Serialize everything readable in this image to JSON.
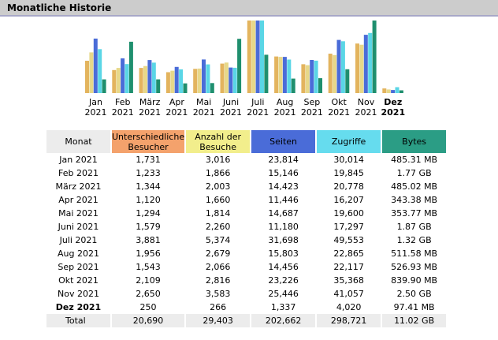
{
  "page": {
    "title": "Monatliche Historie"
  },
  "colors": {
    "unique": "#e3b45e",
    "visits": "#e7d889",
    "pages": "#4a6cd8",
    "hits": "#5ad6e6",
    "bytes": "#1f8f6e"
  },
  "chart_data": {
    "type": "bar",
    "categories": [
      "Jan 2021",
      "Feb 2021",
      "März 2021",
      "Apr 2021",
      "Mai 2021",
      "Juni 2021",
      "Juli 2021",
      "Aug 2021",
      "Sep 2021",
      "Okt 2021",
      "Nov 2021",
      "Dez 2021"
    ],
    "category_month": [
      "Jan",
      "Feb",
      "März",
      "Apr",
      "Mai",
      "Juni",
      "Juli",
      "Aug",
      "Sep",
      "Okt",
      "Nov",
      "Dez"
    ],
    "category_year": [
      "2021",
      "2021",
      "2021",
      "2021",
      "2021",
      "2021",
      "2021",
      "2021",
      "2021",
      "2021",
      "2021",
      "2021"
    ],
    "highlight_category": "Dez 2021",
    "series": [
      {
        "name": "Unterschiedliche Besucher",
        "values": [
          1731,
          1233,
          1344,
          1120,
          1294,
          1579,
          3881,
          1956,
          1543,
          2109,
          2650,
          250
        ]
      },
      {
        "name": "Anzahl der Besuche",
        "values": [
          3016,
          1866,
          2003,
          1660,
          1814,
          2260,
          5374,
          2679,
          2066,
          2816,
          3583,
          266
        ]
      },
      {
        "name": "Seiten",
        "values": [
          23814,
          15146,
          14423,
          11446,
          14687,
          11180,
          31698,
          15803,
          14456,
          23226,
          25446,
          1337
        ]
      },
      {
        "name": "Zugriffe",
        "values": [
          30014,
          19845,
          20778,
          16207,
          19600,
          17297,
          49553,
          22865,
          22117,
          35368,
          41057,
          4020
        ]
      },
      {
        "name": "Bytes",
        "values_mb": [
          485.31,
          1812.48,
          485.02,
          343.38,
          353.77,
          1914.88,
          1351.68,
          511.58,
          526.93,
          839.9,
          2560,
          97.41
        ]
      }
    ]
  },
  "table": {
    "headers": {
      "month": "Monat",
      "unique": "Unterschiedliche Besucher",
      "visits": "Anzahl der Besuche",
      "pages": "Seiten",
      "hits": "Zugriffe",
      "bytes": "Bytes"
    },
    "rows": [
      {
        "month": "Jan 2021",
        "unique": "1,731",
        "visits": "3,016",
        "pages": "23,814",
        "hits": "30,014",
        "bytes": "485.31 MB"
      },
      {
        "month": "Feb 2021",
        "unique": "1,233",
        "visits": "1,866",
        "pages": "15,146",
        "hits": "19,845",
        "bytes": "1.77 GB"
      },
      {
        "month": "März 2021",
        "unique": "1,344",
        "visits": "2,003",
        "pages": "14,423",
        "hits": "20,778",
        "bytes": "485.02 MB"
      },
      {
        "month": "Apr 2021",
        "unique": "1,120",
        "visits": "1,660",
        "pages": "11,446",
        "hits": "16,207",
        "bytes": "343.38 MB"
      },
      {
        "month": "Mai 2021",
        "unique": "1,294",
        "visits": "1,814",
        "pages": "14,687",
        "hits": "19,600",
        "bytes": "353.77 MB"
      },
      {
        "month": "Juni 2021",
        "unique": "1,579",
        "visits": "2,260",
        "pages": "11,180",
        "hits": "17,297",
        "bytes": "1.87 GB"
      },
      {
        "month": "Juli 2021",
        "unique": "3,881",
        "visits": "5,374",
        "pages": "31,698",
        "hits": "49,553",
        "bytes": "1.32 GB"
      },
      {
        "month": "Aug 2021",
        "unique": "1,956",
        "visits": "2,679",
        "pages": "15,803",
        "hits": "22,865",
        "bytes": "511.58 MB"
      },
      {
        "month": "Sep 2021",
        "unique": "1,543",
        "visits": "2,066",
        "pages": "14,456",
        "hits": "22,117",
        "bytes": "526.93 MB"
      },
      {
        "month": "Okt 2021",
        "unique": "2,109",
        "visits": "2,816",
        "pages": "23,226",
        "hits": "35,368",
        "bytes": "839.90 MB"
      },
      {
        "month": "Nov 2021",
        "unique": "2,650",
        "visits": "3,583",
        "pages": "25,446",
        "hits": "41,057",
        "bytes": "2.50 GB"
      },
      {
        "month": "Dez 2021",
        "unique": "250",
        "visits": "266",
        "pages": "1,337",
        "hits": "4,020",
        "bytes": "97.41 MB",
        "bold": true
      }
    ],
    "total": {
      "month": "Total",
      "unique": "20,690",
      "visits": "29,403",
      "pages": "202,662",
      "hits": "298,721",
      "bytes": "11.02 GB"
    }
  }
}
